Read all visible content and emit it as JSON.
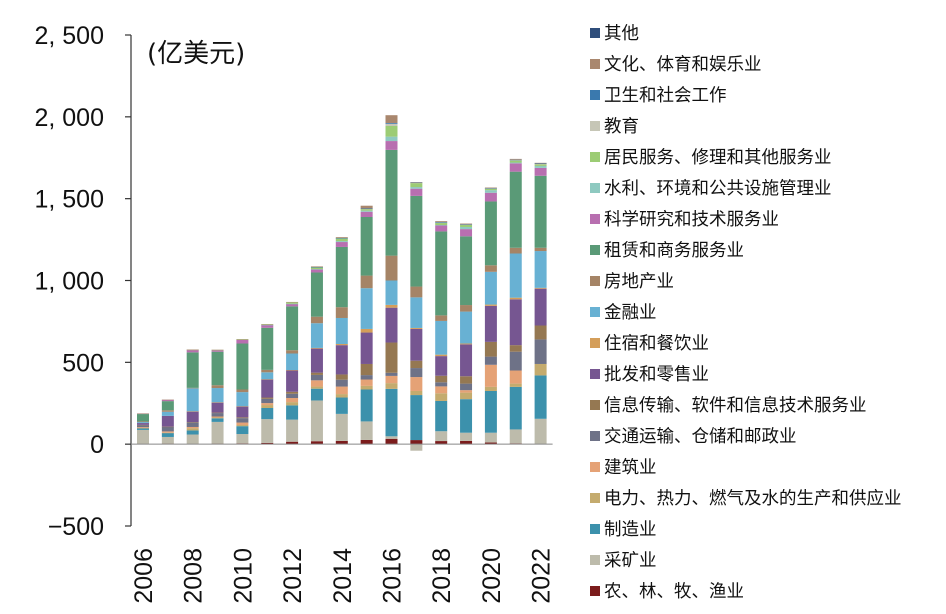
{
  "chart_data": {
    "type": "bar",
    "stacked": true,
    "unit_label": "(亿美元)",
    "title": "",
    "xlabel": "",
    "ylabel": "",
    "ylim": [
      -500,
      2500
    ],
    "yticks": [
      -500,
      0,
      500,
      1000,
      1500,
      2000,
      2500
    ],
    "ytick_labels": [
      "−500",
      "0",
      "500",
      "1, 000",
      "1, 500",
      "2, 000",
      "2, 500"
    ],
    "categories": [
      "2006",
      "2007",
      "2008",
      "2009",
      "2010",
      "2011",
      "2012",
      "2013",
      "2014",
      "2015",
      "2016",
      "2017",
      "2018",
      "2019",
      "2020",
      "2021",
      "2022"
    ],
    "xtick_labels": [
      "2006",
      "",
      "2008",
      "",
      "2010",
      "",
      "2012",
      "",
      "2014",
      "",
      "2016",
      "",
      "2018",
      "",
      "2020",
      "",
      "2022"
    ],
    "series": [
      {
        "name": "农、林、牧、渔业",
        "color": "#7b1c1c",
        "values": [
          2,
          3,
          2,
          3,
          5,
          8,
          15,
          18,
          20,
          26,
          33,
          25,
          19,
          20,
          10,
          5,
          0
        ]
      },
      {
        "name": "采矿业",
        "color": "#bdbbab",
        "values": [
          85,
          41,
          57,
          133,
          57,
          145,
          135,
          249,
          165,
          113,
          15,
          -40,
          60,
          50,
          60,
          85,
          155
        ]
      },
      {
        "name": "制造业",
        "color": "#3c91ac",
        "values": [
          9,
          24,
          25,
          22,
          48,
          68,
          87,
          72,
          100,
          195,
          290,
          275,
          185,
          205,
          255,
          260,
          265
        ]
      },
      {
        "name": "电力、热力、燃气及水的生产和供应业",
        "color": "#c4ab6e",
        "values": [
          3,
          2,
          14,
          5,
          7,
          18,
          20,
          13,
          21,
          22,
          35,
          25,
          47,
          40,
          25,
          20,
          70
        ]
      },
      {
        "name": "建筑业",
        "color": "#e5a276",
        "values": [
          5,
          8,
          7,
          6,
          15,
          12,
          25,
          38,
          46,
          39,
          44,
          85,
          42,
          15,
          135,
          80,
          0
        ]
      },
      {
        "name": "交通运输、仓储和邮政业",
        "color": "#6e7287",
        "values": [
          12,
          27,
          27,
          21,
          27,
          26,
          26,
          33,
          42,
          27,
          19,
          55,
          25,
          40,
          50,
          115,
          150
        ]
      },
      {
        "name": "信息传输、软件和信息技术服务业",
        "color": "#957852",
        "values": [
          2,
          2,
          3,
          3,
          5,
          8,
          12,
          14,
          32,
          68,
          185,
          45,
          40,
          45,
          90,
          40,
          85
        ]
      },
      {
        "name": "批发和零售业",
        "color": "#765691",
        "values": [
          11,
          66,
          65,
          62,
          67,
          111,
          131,
          147,
          179,
          192,
          213,
          194,
          120,
          195,
          220,
          280,
          225
        ]
      },
      {
        "name": "住宿和餐饮业",
        "color": "#d49e5a",
        "values": [
          0,
          0,
          1,
          1,
          1,
          1,
          2,
          4,
          7,
          22,
          17,
          6,
          9,
          5,
          8,
          10,
          5
        ]
      },
      {
        "name": "金融业",
        "color": "#68b1d3",
        "values": [
          6,
          25,
          140,
          87,
          86,
          42,
          101,
          151,
          159,
          249,
          149,
          187,
          206,
          195,
          200,
          270,
          225
        ]
      },
      {
        "name": "房地产业",
        "color": "#a58466",
        "values": [
          4,
          9,
          3,
          17,
          16,
          15,
          20,
          40,
          66,
          77,
          152,
          66,
          34,
          40,
          40,
          35,
          20
        ]
      },
      {
        "name": "租赁和商务服务业",
        "color": "#5a9a77",
        "values": [
          45,
          56,
          217,
          205,
          281,
          257,
          268,
          270,
          368,
          358,
          646,
          554,
          513,
          420,
          390,
          465,
          440
        ]
      },
      {
        "name": "科学研究和技术服务业",
        "color": "#b86fb0",
        "values": [
          3,
          8,
          15,
          8,
          22,
          17,
          15,
          18,
          30,
          32,
          54,
          44,
          36,
          44,
          53,
          51,
          48
        ]
      },
      {
        "name": "水利、环境和公共设施管理业",
        "color": "#8ec9c0",
        "values": [
          0,
          0,
          0,
          0,
          0,
          1,
          1,
          3,
          6,
          7,
          27,
          10,
          3,
          13,
          16,
          5,
          12
        ]
      },
      {
        "name": "居民服务、修理和其他服务业",
        "color": "#9ccc74",
        "values": [
          0,
          0,
          1,
          3,
          3,
          3,
          9,
          11,
          17,
          10,
          65,
          25,
          14,
          14,
          10,
          13,
          9
        ]
      },
      {
        "name": "教育",
        "color": "#c6c6b6",
        "values": [
          0,
          0,
          0,
          0,
          0,
          0,
          0,
          0,
          1,
          1,
          13,
          1,
          1,
          1,
          1,
          1,
          3
        ]
      },
      {
        "name": "卫生和社会工作",
        "color": "#3a79ae",
        "values": [
          0,
          0,
          0,
          0,
          0,
          0,
          0,
          1,
          1,
          2,
          5,
          2,
          4,
          1,
          1,
          3,
          3
        ]
      },
      {
        "name": "文化、体育和娱乐业",
        "color": "#a9876e",
        "values": [
          1,
          1,
          1,
          1,
          2,
          2,
          2,
          4,
          5,
          17,
          48,
          2,
          5,
          5,
          4,
          5,
          4
        ]
      },
      {
        "name": "其他",
        "color": "#2f4e7b",
        "values": [
          0,
          0,
          0,
          0,
          0,
          0,
          0,
          0,
          0,
          0,
          0,
          0,
          0,
          0,
          0,
          0,
          0
        ]
      }
    ],
    "legend_order": [
      "其他",
      "文化、体育和娱乐业",
      "卫生和社会工作",
      "教育",
      "居民服务、修理和其他服务业",
      "水利、环境和公共设施管理业",
      "科学研究和技术服务业",
      "租赁和商务服务业",
      "房地产业",
      "金融业",
      "住宿和餐饮业",
      "批发和零售业",
      "信息传输、软件和信息技术服务业",
      "交通运输、仓储和邮政业",
      "建筑业",
      "电力、热力、燃气及水的生产和供应业",
      "制造业",
      "采矿业",
      "农、林、牧、渔业"
    ],
    "legend_position": "right",
    "grid": false
  }
}
